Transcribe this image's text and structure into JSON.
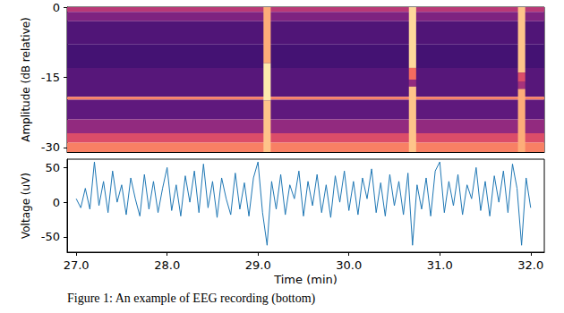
{
  "chart_data": [
    {
      "type": "heatmap",
      "ylabel": "Amplitude (dB relative)",
      "xlim": [
        26.9,
        32.15
      ],
      "ylim": [
        -31,
        0
      ],
      "yticks": [
        0,
        -15,
        -30
      ],
      "tick_labels": "y",
      "color_range": [
        0,
        1
      ],
      "cells": [
        [
          26.9,
          32.15,
          0,
          -1,
          0.45
        ],
        [
          26.9,
          32.15,
          -1,
          -3,
          0.3
        ],
        [
          26.9,
          32.15,
          -3,
          -8,
          0.18
        ],
        [
          26.9,
          32.15,
          -8,
          -13,
          0.15
        ],
        [
          26.9,
          32.15,
          -13,
          -19.2,
          0.2
        ],
        [
          26.9,
          32.15,
          -19.2,
          -19.8,
          0.7
        ],
        [
          26.9,
          32.15,
          -19.8,
          -24,
          0.22
        ],
        [
          26.9,
          32.15,
          -24,
          -27,
          0.35
        ],
        [
          26.9,
          32.15,
          -27,
          -29,
          0.55
        ],
        [
          26.9,
          32.15,
          -29,
          -31,
          0.7
        ],
        [
          29.06,
          29.14,
          0,
          -12,
          0.8
        ],
        [
          29.06,
          29.14,
          -12,
          -20,
          0.95
        ],
        [
          29.06,
          29.14,
          -20,
          -31,
          0.85
        ],
        [
          30.66,
          30.74,
          0,
          -13,
          0.9
        ],
        [
          30.66,
          30.74,
          -13,
          -15.5,
          0.65
        ],
        [
          30.66,
          30.74,
          -15.5,
          -17,
          0.35
        ],
        [
          30.66,
          30.74,
          -17,
          -31,
          0.85
        ],
        [
          31.86,
          31.94,
          0,
          -14,
          0.85
        ],
        [
          31.86,
          31.94,
          -14,
          -16,
          0.55
        ],
        [
          31.86,
          31.94,
          -16,
          -17.5,
          0.4
        ],
        [
          31.86,
          31.94,
          -17.5,
          -31,
          0.8
        ]
      ]
    },
    {
      "type": "line",
      "xlabel": "Time (min)",
      "ylabel": "Voltage (uV)",
      "color": "#1f77b4",
      "xlim": [
        26.9,
        32.15
      ],
      "xticks": [
        {
          "value": 27,
          "label": "27.0"
        },
        {
          "value": 28,
          "label": "28.0"
        },
        {
          "value": 29,
          "label": "29.0"
        },
        {
          "value": 30,
          "label": "30.0"
        },
        {
          "value": 31,
          "label": "31.0"
        },
        {
          "value": 32,
          "label": "32.0"
        }
      ],
      "ylim": [
        -72,
        62
      ],
      "yticks": [
        -50,
        0,
        50
      ],
      "x": [
        27.0,
        27.05,
        27.1,
        27.15,
        27.2,
        27.25,
        27.3,
        27.35,
        27.4,
        27.45,
        27.5,
        27.55,
        27.6,
        27.65,
        27.7,
        27.75,
        27.8,
        27.85,
        27.9,
        27.95,
        28.0,
        28.05,
        28.1,
        28.15,
        28.2,
        28.25,
        28.3,
        28.35,
        28.4,
        28.45,
        28.5,
        28.55,
        28.6,
        28.65,
        28.7,
        28.75,
        28.8,
        28.85,
        28.9,
        28.95,
        29.0,
        29.05,
        29.1,
        29.15,
        29.2,
        29.25,
        29.3,
        29.35,
        29.4,
        29.45,
        29.5,
        29.55,
        29.6,
        29.65,
        29.7,
        29.75,
        29.8,
        29.85,
        29.9,
        29.95,
        30.0,
        30.05,
        30.1,
        30.15,
        30.2,
        30.25,
        30.3,
        30.35,
        30.4,
        30.45,
        30.5,
        30.55,
        30.6,
        30.65,
        30.7,
        30.75,
        30.8,
        30.85,
        30.9,
        30.95,
        31.0,
        31.05,
        31.1,
        31.15,
        31.2,
        31.25,
        31.3,
        31.35,
        31.4,
        31.45,
        31.5,
        31.55,
        31.6,
        31.65,
        31.7,
        31.75,
        31.8,
        31.85,
        31.9,
        31.95,
        32.0
      ],
      "values": [
        5,
        -8,
        20,
        -10,
        58,
        -5,
        30,
        -15,
        45,
        0,
        25,
        -18,
        35,
        5,
        -20,
        40,
        -10,
        30,
        -15,
        20,
        50,
        -12,
        25,
        -20,
        38,
        0,
        45,
        -15,
        55,
        -8,
        30,
        -22,
        35,
        5,
        -18,
        42,
        -10,
        28,
        -20,
        35,
        58,
        -15,
        -62,
        30,
        -10,
        40,
        -18,
        25,
        5,
        45,
        -20,
        30,
        -5,
        40,
        -15,
        25,
        -22,
        38,
        0,
        45,
        -12,
        30,
        -18,
        35,
        5,
        48,
        -15,
        28,
        -20,
        40,
        -5,
        30,
        -18,
        42,
        -62,
        25,
        -10,
        35,
        -20,
        45,
        58,
        -15,
        30,
        -5,
        40,
        -18,
        25,
        5,
        50,
        -12,
        30,
        -20,
        38,
        0,
        45,
        -15,
        55,
        20,
        -62,
        35,
        -8
      ]
    }
  ],
  "caption": "Figure 1: An example of EEG recording (bottom)"
}
